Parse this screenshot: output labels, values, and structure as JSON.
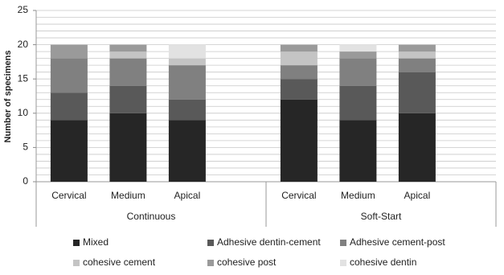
{
  "chart_data": {
    "type": "stacked-bar",
    "y_label": "Number of specimens",
    "groups": [
      {
        "label": "Continuous",
        "categories": [
          "Cervical",
          "Medium",
          "Apical"
        ]
      },
      {
        "label": "Soft-Start",
        "categories": [
          "Cervical",
          "Medium",
          "Apical"
        ]
      }
    ],
    "series": [
      {
        "name": "Mixed",
        "color": "#262626",
        "values": [
          9,
          10,
          9,
          12,
          9,
          10
        ]
      },
      {
        "name": "Adhesive dentin-cement",
        "color": "#595959",
        "values": [
          4,
          4,
          3,
          3,
          5,
          6
        ]
      },
      {
        "name": "Adhesive cement-post",
        "color": "#808080",
        "values": [
          5,
          4,
          5,
          2,
          4,
          2
        ]
      },
      {
        "name": "cohesive cement",
        "color": "#c4c4c4",
        "values": [
          0,
          1,
          1,
          2,
          0,
          1
        ]
      },
      {
        "name": "cohesive post",
        "color": "#9a9a9a",
        "values": [
          2,
          1,
          0,
          1,
          1,
          1
        ]
      },
      {
        "name": "cohesive dentin",
        "color": "#e2e2e2",
        "values": [
          0,
          0,
          2,
          0,
          1,
          0
        ]
      }
    ],
    "ylim": [
      0,
      25
    ],
    "yticks": [
      0,
      5,
      10,
      15,
      20,
      25
    ],
    "ygrid": [
      0,
      1,
      2,
      3,
      4,
      5,
      6,
      7,
      8,
      9,
      10,
      11,
      12,
      13,
      14,
      15,
      16,
      17,
      18,
      19,
      20,
      21,
      22,
      23,
      24,
      25
    ],
    "grid": true,
    "legend": "bottom"
  }
}
